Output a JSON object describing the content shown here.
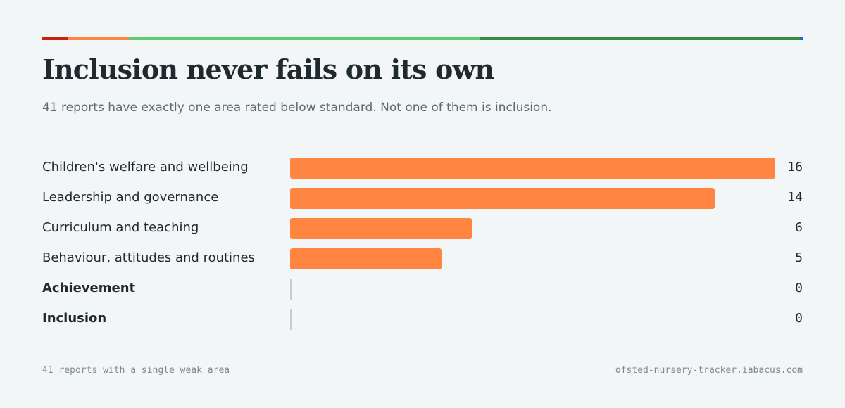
{
  "header": {
    "title": "Inclusion never fails on its own",
    "subtitle": "41 reports have exactly one area rated below standard. Not one of them is inclusion.",
    "rating_colors": [
      "#c8210f",
      "#ff8541",
      "#5ccc6c",
      "#3a8a3e",
      "#1a6fd0"
    ]
  },
  "chart_data": {
    "type": "bar",
    "orientation": "horizontal",
    "title": "Inclusion never fails on its own",
    "subtitle": "41 reports have exactly one area rated below standard. Not one of them is inclusion.",
    "categories": [
      "Children's welfare and wellbeing",
      "Leadership and governance",
      "Curriculum and teaching",
      "Behaviour, attitudes and routines",
      "Achievement",
      "Inclusion"
    ],
    "values": [
      16,
      14,
      6,
      5,
      0,
      0
    ],
    "emphasized": [
      "Achievement",
      "Inclusion"
    ],
    "xlim": [
      0,
      16
    ],
    "bar_color": "#ff8541",
    "zero_color": "#c5cdcf",
    "grid": false
  },
  "footer": {
    "left": "41 reports with a single weak area",
    "right": "ofsted-nursery-tracker.iabacus.com"
  }
}
